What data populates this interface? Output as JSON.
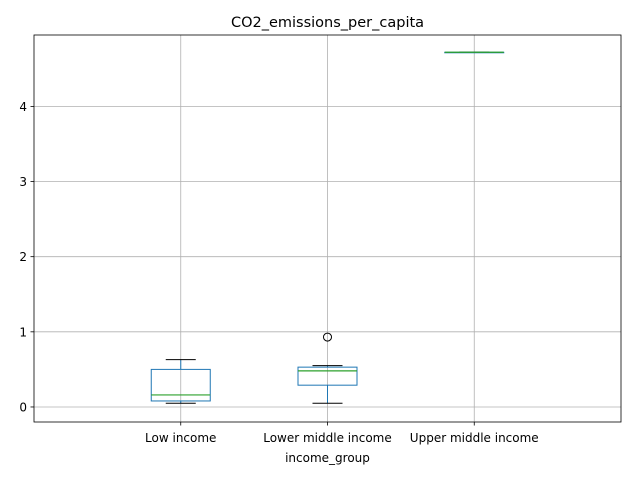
{
  "chart_data": {
    "type": "boxplot",
    "title": "CO2_emissions_per_capita",
    "xlabel": "income_group",
    "ylabel": "",
    "ylim": [
      -0.2,
      4.95
    ],
    "yticks": [
      0,
      1,
      2,
      3,
      4
    ],
    "grid": true,
    "categories": [
      "Low income",
      "Lower middle income",
      "Upper middle income"
    ],
    "boxes": [
      {
        "category": "Low income",
        "whisker_low": 0.05,
        "q1": 0.08,
        "median": 0.16,
        "q3": 0.5,
        "whisker_high": 0.63,
        "outliers": []
      },
      {
        "category": "Lower middle income",
        "whisker_low": 0.05,
        "q1": 0.29,
        "median": 0.48,
        "q3": 0.53,
        "whisker_high": 0.55,
        "outliers": [
          0.93
        ]
      },
      {
        "category": "Upper middle income",
        "whisker_low": 4.72,
        "q1": 4.72,
        "median": 4.72,
        "q3": 4.72,
        "whisker_high": 4.72,
        "outliers": []
      }
    ],
    "colors": {
      "box": "#1f77b4",
      "median": "#2ca02c",
      "whisker": "#000000",
      "grid": "#b0b0b0"
    }
  }
}
